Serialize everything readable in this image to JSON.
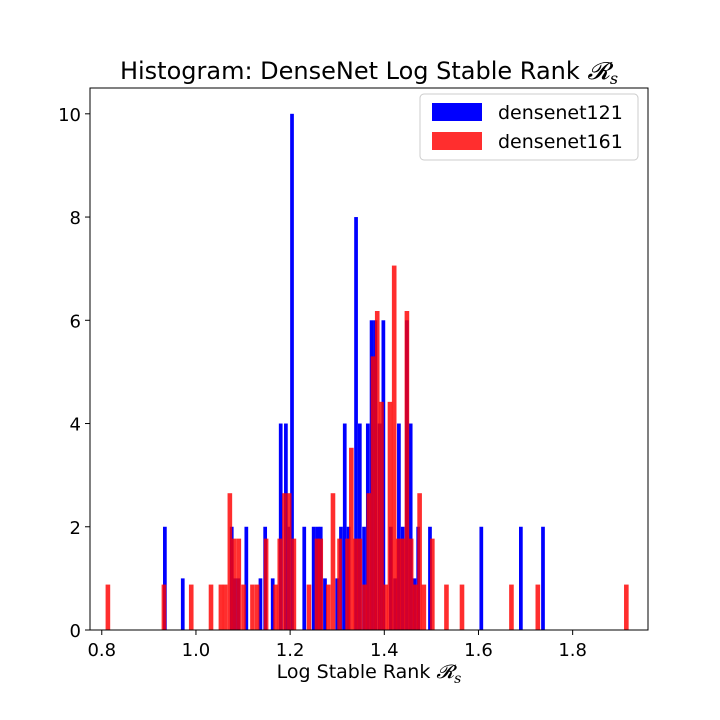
{
  "chart_data": {
    "type": "bar",
    "title": "Histogram: DenseNet Log Stable Rank",
    "title_math": "𝓡",
    "title_math_sub": "s",
    "xlabel": "Log Stable Rank",
    "xlabel_math": "𝓡",
    "xlabel_math_sub": "s",
    "ylabel": "",
    "xlim": [
      0.775,
      1.96
    ],
    "ylim": [
      0,
      10.5
    ],
    "xticks": [
      0.8,
      1.0,
      1.2,
      1.4,
      1.6,
      1.8
    ],
    "xtick_labels": [
      "0.8",
      "1.0",
      "1.2",
      "1.4",
      "1.6",
      "1.8"
    ],
    "yticks": [
      0,
      2,
      4,
      6,
      8,
      10
    ],
    "ytick_labels": [
      "0",
      "2",
      "4",
      "6",
      "8",
      "10"
    ],
    "grid": false,
    "legend_position": "top-right",
    "series": [
      {
        "name": "densenet121",
        "color": "#0000ff",
        "opacity": 1.0,
        "bin_width": 0.0079,
        "bins": [
          [
            0.934,
            2
          ],
          [
            0.972,
            1
          ],
          [
            1.076,
            2
          ],
          [
            1.082,
            1
          ],
          [
            1.09,
            1
          ],
          [
            1.107,
            2
          ],
          [
            1.137,
            1
          ],
          [
            1.147,
            2
          ],
          [
            1.163,
            1
          ],
          [
            1.18,
            4
          ],
          [
            1.191,
            4
          ],
          [
            1.196,
            2
          ],
          [
            1.204,
            10
          ],
          [
            1.23,
            2
          ],
          [
            1.25,
            2
          ],
          [
            1.258,
            2
          ],
          [
            1.265,
            2
          ],
          [
            1.274,
            1
          ],
          [
            1.3,
            1
          ],
          [
            1.308,
            2
          ],
          [
            1.316,
            4
          ],
          [
            1.324,
            2
          ],
          [
            1.34,
            8
          ],
          [
            1.348,
            4
          ],
          [
            1.357,
            2
          ],
          [
            1.365,
            4
          ],
          [
            1.373,
            6
          ],
          [
            1.381,
            6
          ],
          [
            1.39,
            4
          ],
          [
            1.398,
            6
          ],
          [
            1.414,
            2
          ],
          [
            1.423,
            1
          ],
          [
            1.431,
            4
          ],
          [
            1.439,
            2
          ],
          [
            1.448,
            6
          ],
          [
            1.456,
            4
          ],
          [
            1.464,
            1
          ],
          [
            1.472,
            2
          ],
          [
            1.497,
            2
          ],
          [
            1.606,
            2
          ],
          [
            1.69,
            2
          ],
          [
            1.737,
            2
          ]
        ]
      },
      {
        "name": "densenet161",
        "color": "#ff0000",
        "opacity": 0.82,
        "bin_width": 0.0098,
        "bins": [
          [
            0.813,
            0.88
          ],
          [
            0.932,
            0.88
          ],
          [
            0.99,
            0.88
          ],
          [
            1.032,
            0.88
          ],
          [
            1.053,
            0.88
          ],
          [
            1.062,
            0.88
          ],
          [
            1.072,
            2.65
          ],
          [
            1.081,
            1.77
          ],
          [
            1.091,
            1.77
          ],
          [
            1.101,
            0.88
          ],
          [
            1.12,
            0.88
          ],
          [
            1.13,
            0.88
          ],
          [
            1.149,
            1.77
          ],
          [
            1.169,
            0.88
          ],
          [
            1.178,
            1.77
          ],
          [
            1.188,
            2.65
          ],
          [
            1.198,
            2.65
          ],
          [
            1.208,
            1.77
          ],
          [
            1.24,
            0.88
          ],
          [
            1.257,
            1.77
          ],
          [
            1.265,
            1.77
          ],
          [
            1.281,
            0.88
          ],
          [
            1.291,
            2.65
          ],
          [
            1.305,
            1.77
          ],
          [
            1.322,
            1.77
          ],
          [
            1.33,
            3.53
          ],
          [
            1.339,
            1.77
          ],
          [
            1.348,
            1.77
          ],
          [
            1.358,
            0.88
          ],
          [
            1.367,
            2.65
          ],
          [
            1.376,
            5.3
          ],
          [
            1.385,
            6.18
          ],
          [
            1.394,
            4.42
          ],
          [
            1.403,
            0.88
          ],
          [
            1.412,
            4.42
          ],
          [
            1.421,
            7.06
          ],
          [
            1.43,
            1.77
          ],
          [
            1.439,
            1.77
          ],
          [
            1.448,
            6.18
          ],
          [
            1.457,
            1.77
          ],
          [
            1.466,
            0.88
          ],
          [
            1.475,
            2.65
          ],
          [
            1.484,
            0.88
          ],
          [
            1.502,
            1.77
          ],
          [
            1.532,
            0.88
          ],
          [
            1.565,
            0.88
          ],
          [
            1.67,
            0.88
          ],
          [
            1.726,
            0.88
          ],
          [
            1.914,
            0.88
          ]
        ]
      }
    ]
  }
}
